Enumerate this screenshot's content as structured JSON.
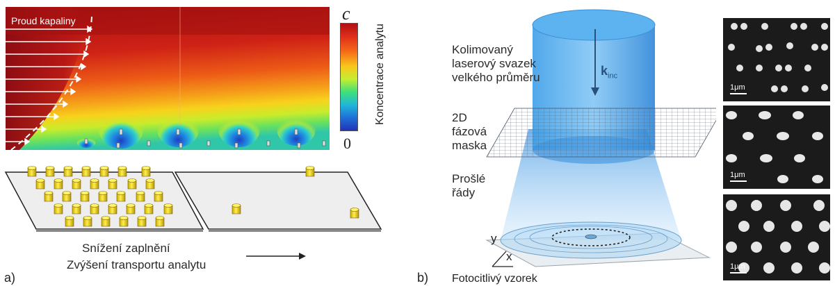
{
  "panel_a": {
    "label": "a)",
    "flow_label": "Proud kapaliny",
    "colorbar": {
      "top_label": "c",
      "bottom_label": "0",
      "axis_label": "Koncentrace analytu",
      "colors": [
        "#b01010",
        "#e02d1a",
        "#f56a17",
        "#f8c71b",
        "#c4ee32",
        "#3ee07a",
        "#22b7d8",
        "#1f6fd8",
        "#2233b8"
      ]
    },
    "caption_line1": "Snížení zaplnění",
    "caption_line2": "Zvýšení transportu analytu"
  },
  "panel_b": {
    "label": "b)",
    "beam_label": [
      "Kolimovaný",
      "laserový svazek",
      "velkého průměru"
    ],
    "mask_label": [
      "2D",
      "fázová",
      "maska"
    ],
    "orders_label": [
      "Prošlé",
      "řády"
    ],
    "sample_label": "Fotocitlivý vzorek",
    "k_label": "k",
    "k_subscript": "inc",
    "axis_y": "y",
    "axis_x": "x",
    "sem_scale_labels": [
      "1μm",
      "1μm",
      "1μm"
    ],
    "beam_color": "#2f8de0"
  }
}
